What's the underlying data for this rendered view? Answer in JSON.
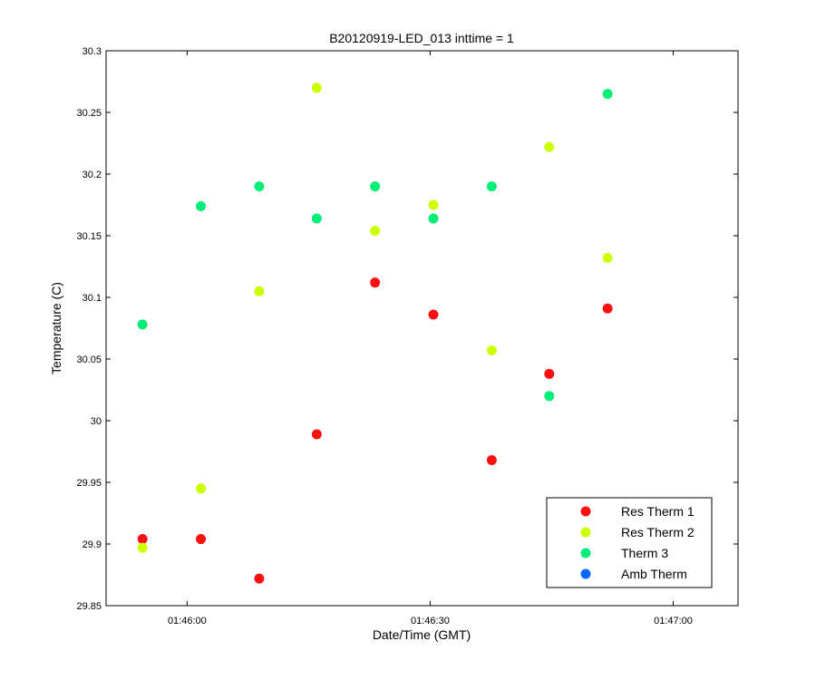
{
  "chart_data": {
    "type": "scatter",
    "title": "B20120919-LED_013 inttime = 1",
    "xlabel": "Date/Time (GMT)",
    "ylabel": "Temperature (C)",
    "xlim_seconds": [
      0,
      78
    ],
    "x_ticks": [
      {
        "value": 10,
        "label": "01:46:00"
      },
      {
        "value": 40,
        "label": "01:46:30"
      },
      {
        "value": 70,
        "label": "01:47:00"
      }
    ],
    "ylim": [
      29.85,
      30.3
    ],
    "y_ticks": [
      {
        "value": 29.85,
        "label": "29.85"
      },
      {
        "value": 29.9,
        "label": "29.9"
      },
      {
        "value": 29.95,
        "label": "29.95"
      },
      {
        "value": 30.0,
        "label": "30"
      },
      {
        "value": 30.05,
        "label": "30.05"
      },
      {
        "value": 30.1,
        "label": "30.1"
      },
      {
        "value": 30.15,
        "label": "30.15"
      },
      {
        "value": 30.2,
        "label": "30.2"
      },
      {
        "value": 30.25,
        "label": "30.25"
      },
      {
        "value": 30.3,
        "label": "30.3"
      }
    ],
    "grid": false,
    "legend_position": "bottom-right",
    "x": [
      4.5,
      11.7,
      18.9,
      26.0,
      33.2,
      40.4,
      47.6,
      54.7,
      61.9
    ],
    "series": [
      {
        "name": "Res Therm 1",
        "color": "#ff1010",
        "values": [
          29.904,
          29.904,
          29.872,
          29.989,
          30.112,
          30.086,
          29.968,
          30.038,
          30.091
        ]
      },
      {
        "name": "Res Therm 2",
        "color": "#ccff00",
        "values": [
          29.897,
          29.945,
          30.105,
          30.27,
          30.154,
          30.175,
          30.057,
          30.222,
          30.132
        ]
      },
      {
        "name": "Therm 3",
        "color": "#00ee77",
        "values": [
          30.078,
          30.174,
          30.19,
          30.164,
          30.19,
          30.164,
          30.19,
          30.02,
          30.265
        ]
      },
      {
        "name": "Amb Therm",
        "color": "#0066ff",
        "values": []
      }
    ]
  }
}
